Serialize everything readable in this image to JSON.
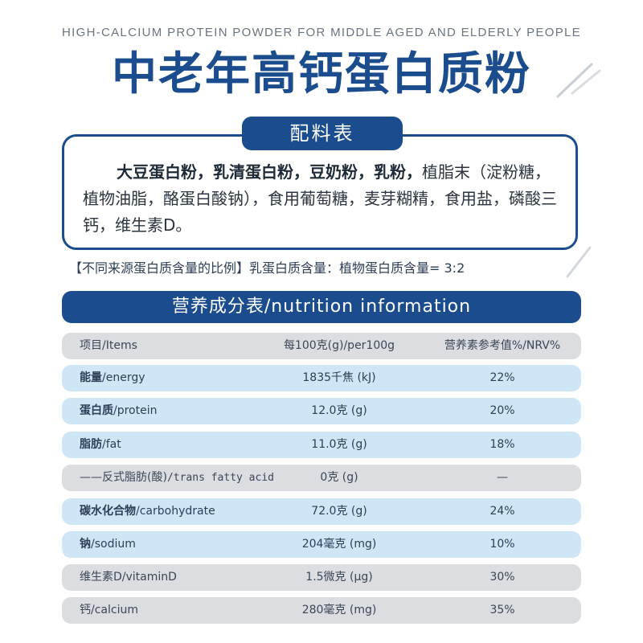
{
  "subtitle_en": "HIGH-CALCIUM PROTEIN POWDER FOR MIDDLE AGED AND ELDERLY PEOPLE",
  "title": "中老年高钙蛋白质粉",
  "ingredients": {
    "label": "配料表",
    "bold_text": "大豆蛋白粉，乳清蛋白粉，豆奶粉，乳粉，",
    "text": "植脂末（淀粉糖，植物油脂，酪蛋白酸钠），食用葡萄糖，麦芽糊精，食用盐，磷酸三钙，维生素D。"
  },
  "ratio_note": "【不同来源蛋白质含量的比例】乳蛋白质含量：植物蛋白质含量= 3:2",
  "nutrition": {
    "title": "营养成分表/nutrition information",
    "header": {
      "item": "项目/Items",
      "per100g": "每100克(g)/per100g",
      "nrv": "营养素参考值%/NRV%"
    },
    "rows": [
      {
        "name_cn": "能量",
        "name_en": "/energy",
        "value": "1835千焦 (kJ)",
        "nrv": "22%"
      },
      {
        "name_cn": "蛋白质",
        "name_en": "/protein",
        "value": "12.0克 (g)",
        "nrv": "20%"
      },
      {
        "name_cn": "脂肪",
        "name_en": "/fat",
        "value": "11.0克 (g)",
        "nrv": "18%"
      },
      {
        "name_cn": "——反式脂肪(酸)",
        "name_en": "/trans fatty acid",
        "value": "0克 (g)",
        "nrv": "—"
      },
      {
        "name_cn": "碳水化合物",
        "name_en": "/carbohydrate",
        "value": "72.0克 (g)",
        "nrv": "24%"
      },
      {
        "name_cn": "钠",
        "name_en": "/sodium",
        "value": "204毫克 (mg)",
        "nrv": "10%"
      },
      {
        "name_cn": "维生素D",
        "name_en": "/vitaminD",
        "value": "1.5微克 (μg)",
        "nrv": "30%"
      },
      {
        "name_cn": "钙",
        "name_en": "/calcium",
        "value": "280毫克 (mg)",
        "nrv": "35%"
      }
    ]
  },
  "colors": {
    "brand_blue": "#1a4c8e",
    "row_blue": "#cfe6f7",
    "row_gray": "#dcdde1"
  }
}
